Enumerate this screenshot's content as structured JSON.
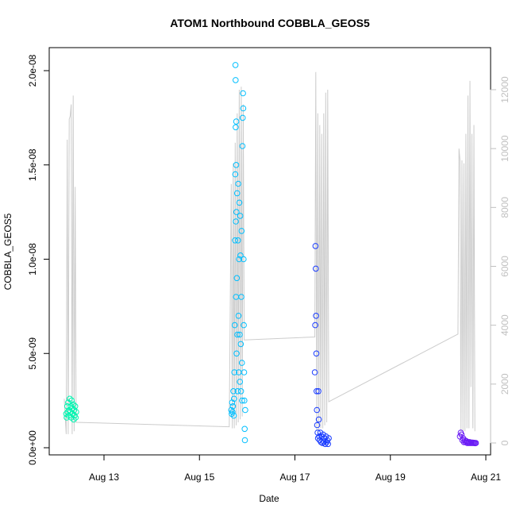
{
  "chart_data": {
    "type": "scatter",
    "title": "ATOM1 Northbound COBBLA_GEOS5",
    "xlabel": "Date",
    "ylabel": "COBBLA_GEOS5",
    "x_type": "date",
    "x_range": [
      "2016-08-12",
      "2016-08-21"
    ],
    "x_ticks": [
      {
        "date": "2016-08-13",
        "label": "Aug 13"
      },
      {
        "date": "2016-08-15",
        "label": "Aug 15"
      },
      {
        "date": "2016-08-17",
        "label": "Aug 17"
      },
      {
        "date": "2016-08-19",
        "label": "Aug 19"
      },
      {
        "date": "2016-08-21",
        "label": "Aug 21"
      }
    ],
    "ylim": [
      0,
      2.05e-08
    ],
    "y_ticks": [
      {
        "value": 0,
        "label": "0.0e+00"
      },
      {
        "value": 5e-09,
        "label": "5.0e-09"
      },
      {
        "value": 1e-08,
        "label": "1.0e-08"
      },
      {
        "value": 1.5e-08,
        "label": "1.5e-08"
      },
      {
        "value": 2e-08,
        "label": "2.0e-08"
      }
    ],
    "y2lim": [
      0,
      12800
    ],
    "y2_ticks": [
      {
        "value": 0,
        "label": "0"
      },
      {
        "value": 2000,
        "label": "2000"
      },
      {
        "value": 4000,
        "label": "4000"
      },
      {
        "value": 6000,
        "label": "6000"
      },
      {
        "value": 8000,
        "label": "8000"
      },
      {
        "value": 10000,
        "label": "10000"
      },
      {
        "value": 12000,
        "label": "12000"
      }
    ],
    "grid": false,
    "altitude_line_color": "#cccccc",
    "series": [
      {
        "color": "#00f5b0",
        "x_start": "2016-08-12T05:00",
        "x_end": "2016-08-12T10:00",
        "points": [
          [
            0.0,
            1.8e-09
          ],
          [
            0.05,
            1.6e-09
          ],
          [
            0.1,
            2.2e-09
          ],
          [
            0.15,
            1.9e-09
          ],
          [
            0.2,
            2.4e-09
          ],
          [
            0.25,
            1.7e-09
          ],
          [
            0.3,
            2e-09
          ],
          [
            0.35,
            2.6e-09
          ],
          [
            0.4,
            1.9e-09
          ],
          [
            0.45,
            2.2e-09
          ],
          [
            0.5,
            1.6e-09
          ],
          [
            0.55,
            2.5e-09
          ],
          [
            0.6,
            2.1e-09
          ],
          [
            0.65,
            1.8e-09
          ],
          [
            0.7,
            2.3e-09
          ],
          [
            0.75,
            1.5e-09
          ],
          [
            0.8,
            2e-09
          ],
          [
            0.85,
            1.7e-09
          ],
          [
            0.9,
            2.2e-09
          ],
          [
            0.95,
            1.6e-09
          ],
          [
            1.0,
            1.9e-09
          ]
        ]
      },
      {
        "color": "#00bfff",
        "x_start": "2016-08-15T16:00",
        "x_end": "2016-08-15T23:00",
        "points": [
          [
            0.0,
            2e-09
          ],
          [
            0.03,
            1.8e-09
          ],
          [
            0.06,
            2.4e-09
          ],
          [
            0.09,
            1.9e-09
          ],
          [
            0.12,
            2.2e-09
          ],
          [
            0.15,
            3e-09
          ],
          [
            0.18,
            1.7e-09
          ],
          [
            0.2,
            2.6e-09
          ],
          [
            0.22,
            4e-09
          ],
          [
            0.25,
            6.5e-09
          ],
          [
            0.27,
            1.1e-08
          ],
          [
            0.29,
            1.45e-08
          ],
          [
            0.3,
            2.03e-08
          ],
          [
            0.31,
            1.95e-08
          ],
          [
            0.32,
            1.7e-08
          ],
          [
            0.33,
            1.2e-08
          ],
          [
            0.34,
            8e-09
          ],
          [
            0.35,
            1.5e-08
          ],
          [
            0.36,
            1.73e-08
          ],
          [
            0.37,
            1.25e-08
          ],
          [
            0.38,
            5e-09
          ],
          [
            0.4,
            9e-09
          ],
          [
            0.42,
            1.35e-08
          ],
          [
            0.44,
            6e-09
          ],
          [
            0.46,
            3e-09
          ],
          [
            0.48,
            1.1e-08
          ],
          [
            0.5,
            1.4e-08
          ],
          [
            0.52,
            7e-09
          ],
          [
            0.54,
            4e-09
          ],
          [
            0.56,
            1e-08
          ],
          [
            0.58,
            1.3e-08
          ],
          [
            0.6,
            6e-09
          ],
          [
            0.62,
            3.5e-09
          ],
          [
            0.64,
            1.23e-08
          ],
          [
            0.66,
            1.02e-08
          ],
          [
            0.68,
            5.5e-09
          ],
          [
            0.7,
            3e-09
          ],
          [
            0.72,
            8e-09
          ],
          [
            0.74,
            1.15e-08
          ],
          [
            0.76,
            4.5e-09
          ],
          [
            0.78,
            2.5e-09
          ],
          [
            0.8,
            1.6e-08
          ],
          [
            0.82,
            1.75e-08
          ],
          [
            0.84,
            1.88e-08
          ],
          [
            0.86,
            1.8e-08
          ],
          [
            0.88,
            1e-08
          ],
          [
            0.9,
            6.5e-09
          ],
          [
            0.92,
            4e-09
          ],
          [
            0.94,
            2.5e-09
          ],
          [
            0.96,
            1e-09
          ],
          [
            0.98,
            4e-10
          ],
          [
            1.0,
            2e-09
          ]
        ]
      },
      {
        "color": "#1a3cff",
        "x_start": "2016-08-17T10:00",
        "x_end": "2016-08-17T17:00",
        "points": [
          [
            0.0,
            4e-09
          ],
          [
            0.03,
            6.5e-09
          ],
          [
            0.05,
            1.07e-08
          ],
          [
            0.07,
            9.5e-09
          ],
          [
            0.09,
            7e-09
          ],
          [
            0.11,
            5e-09
          ],
          [
            0.13,
            3e-09
          ],
          [
            0.15,
            2e-09
          ],
          [
            0.17,
            1.2e-09
          ],
          [
            0.2,
            8e-10
          ],
          [
            0.23,
            5e-10
          ],
          [
            0.26,
            3e-09
          ],
          [
            0.29,
            1.5e-09
          ],
          [
            0.32,
            6e-10
          ],
          [
            0.35,
            4e-10
          ],
          [
            0.4,
            8e-10
          ],
          [
            0.45,
            3e-10
          ],
          [
            0.5,
            6e-10
          ],
          [
            0.55,
            2.5e-10
          ],
          [
            0.6,
            7e-10
          ],
          [
            0.65,
            3e-10
          ],
          [
            0.7,
            5e-10
          ],
          [
            0.75,
            2e-10
          ],
          [
            0.8,
            6e-10
          ],
          [
            0.85,
            3e-10
          ],
          [
            0.9,
            4e-10
          ],
          [
            0.95,
            2e-10
          ],
          [
            1.0,
            5e-10
          ]
        ]
      },
      {
        "color": "#6a1cf5",
        "x_start": "2016-08-20T11:00",
        "x_end": "2016-08-20T19:00",
        "points": [
          [
            0.0,
            6e-10
          ],
          [
            0.05,
            8e-10
          ],
          [
            0.1,
            7e-10
          ],
          [
            0.15,
            4e-10
          ],
          [
            0.2,
            5e-10
          ],
          [
            0.25,
            3e-10
          ],
          [
            0.3,
            4e-10
          ],
          [
            0.35,
            3e-10
          ],
          [
            0.4,
            3.5e-10
          ],
          [
            0.45,
            2.5e-10
          ],
          [
            0.5,
            3e-10
          ],
          [
            0.55,
            2.5e-10
          ],
          [
            0.6,
            3e-10
          ],
          [
            0.65,
            2.5e-10
          ],
          [
            0.7,
            2.8e-10
          ],
          [
            0.75,
            2.5e-10
          ],
          [
            0.8,
            2.7e-10
          ],
          [
            0.85,
            2.5e-10
          ],
          [
            0.9,
            2.6e-10
          ],
          [
            0.95,
            2.4e-10
          ],
          [
            1.0,
            2.5e-10
          ]
        ]
      }
    ],
    "altitude_profile": [
      {
        "date": "2016-08-12T04:00",
        "alt": 1500
      },
      {
        "date": "2016-08-12T05:00",
        "alt": 300
      },
      {
        "date": "2016-08-12T05:30",
        "alt": 10300
      },
      {
        "date": "2016-08-12T06:00",
        "alt": 300
      },
      {
        "date": "2016-08-12T06:30",
        "alt": 11000
      },
      {
        "date": "2016-08-12T07:00",
        "alt": 11100
      },
      {
        "date": "2016-08-12T07:30",
        "alt": 11500
      },
      {
        "date": "2016-08-12T08:00",
        "alt": 300
      },
      {
        "date": "2016-08-12T08:30",
        "alt": 11800
      },
      {
        "date": "2016-08-12T09:00",
        "alt": 400
      },
      {
        "date": "2016-08-12T09:30",
        "alt": 8700
      },
      {
        "date": "2016-08-12T10:00",
        "alt": 700
      },
      {
        "date": "2016-08-15T15:00",
        "alt": 550
      },
      {
        "date": "2016-08-15T16:00",
        "alt": 8800
      },
      {
        "date": "2016-08-15T16:30",
        "alt": 500
      },
      {
        "date": "2016-08-15T17:00",
        "alt": 9500
      },
      {
        "date": "2016-08-15T17:30",
        "alt": 500
      },
      {
        "date": "2016-08-15T18:00",
        "alt": 10200
      },
      {
        "date": "2016-08-15T18:30",
        "alt": 600
      },
      {
        "date": "2016-08-15T19:00",
        "alt": 11200
      },
      {
        "date": "2016-08-15T19:30",
        "alt": 700
      },
      {
        "date": "2016-08-15T20:00",
        "alt": 12000
      },
      {
        "date": "2016-08-15T20:30",
        "alt": 800
      },
      {
        "date": "2016-08-15T21:00",
        "alt": 12100
      },
      {
        "date": "2016-08-15T21:30",
        "alt": 900
      },
      {
        "date": "2016-08-15T22:00",
        "alt": 11500
      },
      {
        "date": "2016-08-15T22:30",
        "alt": 3500
      },
      {
        "date": "2016-08-17T10:00",
        "alt": 3600
      },
      {
        "date": "2016-08-17T10:30",
        "alt": 12600
      },
      {
        "date": "2016-08-17T11:00",
        "alt": 400
      },
      {
        "date": "2016-08-17T11:30",
        "alt": 11200
      },
      {
        "date": "2016-08-17T12:00",
        "alt": 400
      },
      {
        "date": "2016-08-17T12:30",
        "alt": 10800
      },
      {
        "date": "2016-08-17T13:00",
        "alt": 500
      },
      {
        "date": "2016-08-17T13:30",
        "alt": 10500
      },
      {
        "date": "2016-08-17T14:00",
        "alt": 500
      },
      {
        "date": "2016-08-17T14:30",
        "alt": 11200
      },
      {
        "date": "2016-08-17T15:00",
        "alt": 600
      },
      {
        "date": "2016-08-17T15:30",
        "alt": 11900
      },
      {
        "date": "2016-08-17T16:00",
        "alt": 700
      },
      {
        "date": "2016-08-17T16:30",
        "alt": 12000
      },
      {
        "date": "2016-08-17T17:00",
        "alt": 1400
      },
      {
        "date": "2016-08-20T10:00",
        "alt": 3700
      },
      {
        "date": "2016-08-20T10:30",
        "alt": 10000
      },
      {
        "date": "2016-08-20T11:00",
        "alt": 9600
      },
      {
        "date": "2016-08-20T11:30",
        "alt": 400
      },
      {
        "date": "2016-08-20T12:00",
        "alt": 9600
      },
      {
        "date": "2016-08-20T12:30",
        "alt": 400
      },
      {
        "date": "2016-08-20T13:00",
        "alt": 9500
      },
      {
        "date": "2016-08-20T13:30",
        "alt": 400
      },
      {
        "date": "2016-08-20T14:00",
        "alt": 10500
      },
      {
        "date": "2016-08-20T14:30",
        "alt": 500
      },
      {
        "date": "2016-08-20T15:00",
        "alt": 11800
      },
      {
        "date": "2016-08-20T15:30",
        "alt": 500
      },
      {
        "date": "2016-08-20T16:00",
        "alt": 12300
      },
      {
        "date": "2016-08-20T16:30",
        "alt": 1900
      },
      {
        "date": "2016-08-20T17:00",
        "alt": 10500
      },
      {
        "date": "2016-08-20T17:30",
        "alt": 500
      },
      {
        "date": "2016-08-20T18:00",
        "alt": 10800
      },
      {
        "date": "2016-08-20T18:30",
        "alt": 400
      }
    ]
  }
}
